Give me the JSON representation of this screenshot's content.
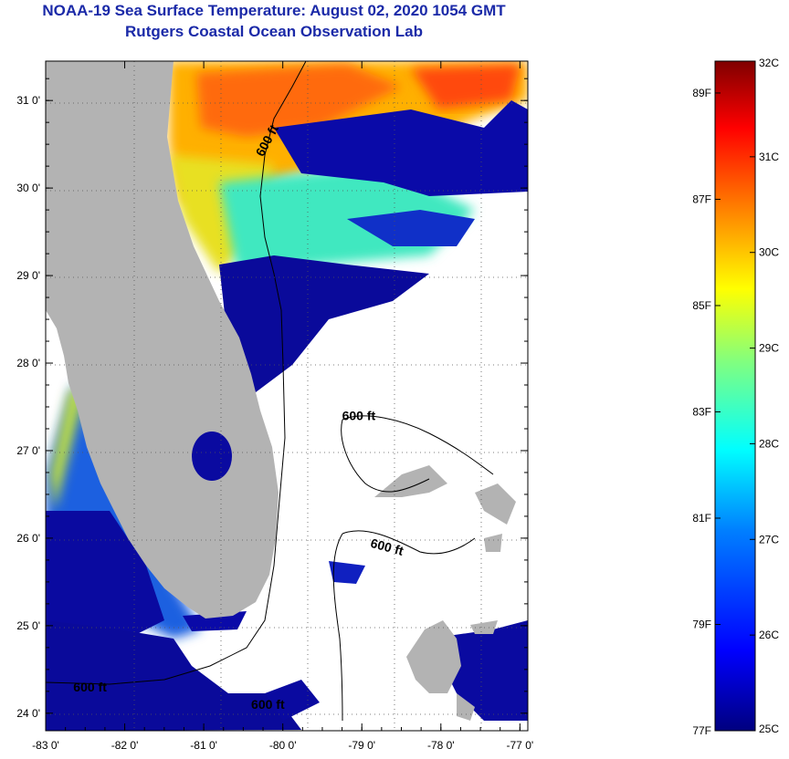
{
  "title": "NOAA-19 Sea Surface Temperature:  August 02, 2020 1054 GMT",
  "subtitle": "Rutgers Coastal Ocean Observation Lab",
  "map": {
    "lon_range": [
      -83.0,
      -76.9
    ],
    "lat_range": [
      23.8,
      31.45
    ],
    "lon_ticks": [
      "-83 0'",
      "-82 0'",
      "-81 0'",
      "-80 0'",
      "-79 0'",
      "-78 0'",
      "-77 0'"
    ],
    "lat_ticks": [
      "31 0'",
      "30 0'",
      "29 0'",
      "28 0'",
      "27 0'",
      "26 0'",
      "25 0'",
      "24 0'"
    ],
    "lon_tick_values": [
      -83,
      -82,
      -81,
      -80,
      -79,
      -78,
      -77
    ],
    "lat_tick_values": [
      31,
      30,
      29,
      28,
      27,
      26,
      25,
      24
    ],
    "grid": "dotted",
    "land_color": "#b3b3b3",
    "cloud_color": "#ffffff",
    "contour_label": "600 ft",
    "contour_labels": [
      {
        "text": "600 ft",
        "lon": -80.25,
        "lat": 30.35,
        "rotate": -62
      },
      {
        "text": "600 ft",
        "lon": -79.25,
        "lat": 27.35,
        "rotate": 0
      },
      {
        "text": "600 ft",
        "lon": -78.9,
        "lat": 25.9,
        "rotate": 15
      },
      {
        "text": "600 ft",
        "lon": -82.65,
        "lat": 24.25,
        "rotate": 0
      },
      {
        "text": "600 ft",
        "lon": -80.4,
        "lat": 24.05,
        "rotate": 0
      }
    ]
  },
  "colorbar": {
    "min_c": 25,
    "max_c": 32,
    "celsius_labels": [
      "32C",
      "31C",
      "30C",
      "29C",
      "28C",
      "27C",
      "26C",
      "25C"
    ],
    "celsius_values": [
      32,
      31,
      30,
      29,
      28,
      27,
      26,
      25
    ],
    "fahrenheit_labels": [
      "89F",
      "87F",
      "85F",
      "83F",
      "81F",
      "79F",
      "77F"
    ],
    "fahrenheit_values": [
      89,
      87,
      85,
      83,
      81,
      79,
      77
    ],
    "colormap": [
      "#00007f",
      "#0000ff",
      "#0080ff",
      "#00ffff",
      "#80ff80",
      "#ffff00",
      "#ff8000",
      "#ff0000",
      "#7f0000"
    ]
  }
}
